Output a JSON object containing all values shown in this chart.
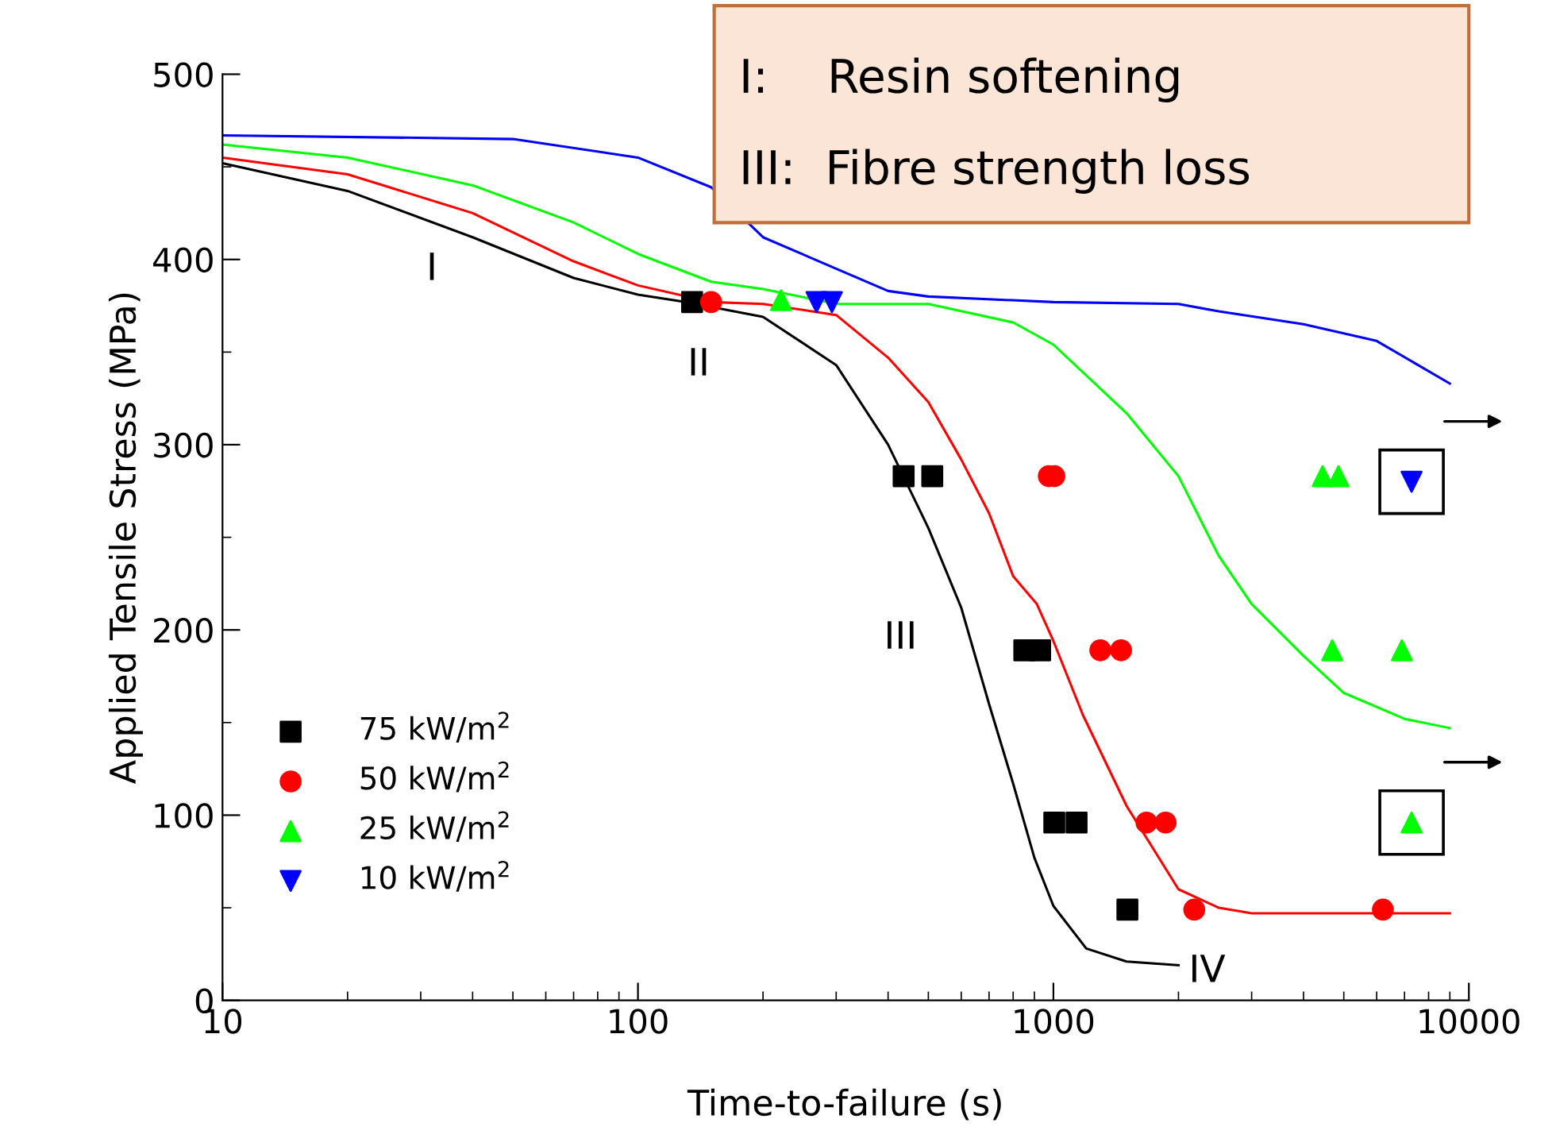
{
  "chart_data": {
    "type": "scatter",
    "xlabel": "Time-to-failure (s)",
    "ylabel": "Applied Tensile Stress (MPa)",
    "log": "x",
    "xlim": [
      10,
      10000
    ],
    "xticks": [
      10,
      100,
      1000,
      10000
    ],
    "ylim": [
      0,
      500
    ],
    "yticks": [
      0,
      100,
      200,
      300,
      400,
      500
    ],
    "grid": false,
    "legend": "bottom left",
    "series": [
      {
        "name": "75 kW/m$^{2}$",
        "color": "#000000",
        "marker": "square",
        "x": [
          135,
          436,
          511,
          851,
          929,
          1005,
          1137,
          1507
        ],
        "values": [
          377,
          283,
          283,
          189,
          189,
          96,
          96,
          49
        ]
      },
      {
        "name": "50 kW/m$^{2}$",
        "color": "#ff0000",
        "marker": "circle",
        "x": [
          150,
          975,
          1005,
          1297,
          1455,
          1675,
          1862,
          2183,
          6210
        ],
        "values": [
          377,
          283,
          283,
          189,
          189,
          96,
          96,
          49,
          49
        ]
      },
      {
        "name": "25 kW/m$^{2}$",
        "color": "#00ff00",
        "marker": "triangle",
        "x": [
          221,
          4446,
          4853,
          4690,
          6900,
          7280
        ],
        "values": [
          378,
          283,
          283,
          189,
          189,
          96
        ]
      },
      {
        "name": "10 kW/m$^{2}$",
        "color": "#0000ff",
        "marker": "triangle_down",
        "x": [
          269,
          293,
          7280
        ],
        "values": [
          377,
          377,
          280
        ]
      },
      {
        "type": "line",
        "color": "#000000",
        "x": [
          10,
          20,
          40,
          70,
          100,
          130,
          200,
          300,
          400,
          500,
          600,
          700,
          800,
          900,
          1000,
          1200,
          1500,
          2000
        ],
        "values": [
          452,
          437,
          412,
          390,
          381,
          377,
          369,
          343,
          300,
          255,
          212,
          160,
          117,
          77,
          51,
          28,
          21,
          19
        ]
      },
      {
        "type": "line",
        "color": "#ff0000",
        "x": [
          10,
          20,
          40,
          70,
          100,
          150,
          200,
          300,
          400,
          500,
          600,
          700,
          800,
          912,
          1000,
          1178,
          1500,
          2000,
          2500,
          3000,
          9000
        ],
        "values": [
          455,
          446,
          425,
          399,
          386,
          377,
          376,
          370,
          347,
          323,
          292,
          263,
          229,
          214,
          194,
          154,
          105,
          60,
          50,
          47,
          47
        ]
      },
      {
        "type": "line",
        "color": "#00ff00",
        "x": [
          10,
          20,
          40,
          70,
          100,
          150,
          200,
          300,
          500,
          800,
          1000,
          1500,
          2000,
          2500,
          3000,
          4000,
          5000,
          7000,
          9000
        ],
        "values": [
          462,
          455,
          440,
          420,
          403,
          388,
          384,
          376,
          376,
          366,
          354,
          317,
          283,
          240,
          214,
          186,
          166,
          152,
          147
        ]
      },
      {
        "type": "line",
        "color": "#0000ff",
        "x": [
          10,
          50,
          100,
          150,
          200,
          300,
          400,
          500,
          1000,
          2000,
          2500,
          4000,
          6000,
          9000
        ],
        "values": [
          467,
          465,
          455,
          439,
          412,
          395,
          383,
          380,
          377,
          376,
          372,
          365,
          356,
          333
        ]
      }
    ],
    "annotations": [
      "I:    Resin softening",
      "III:  Fibre strength loss",
      "I",
      "II",
      "III",
      "IV"
    ]
  }
}
